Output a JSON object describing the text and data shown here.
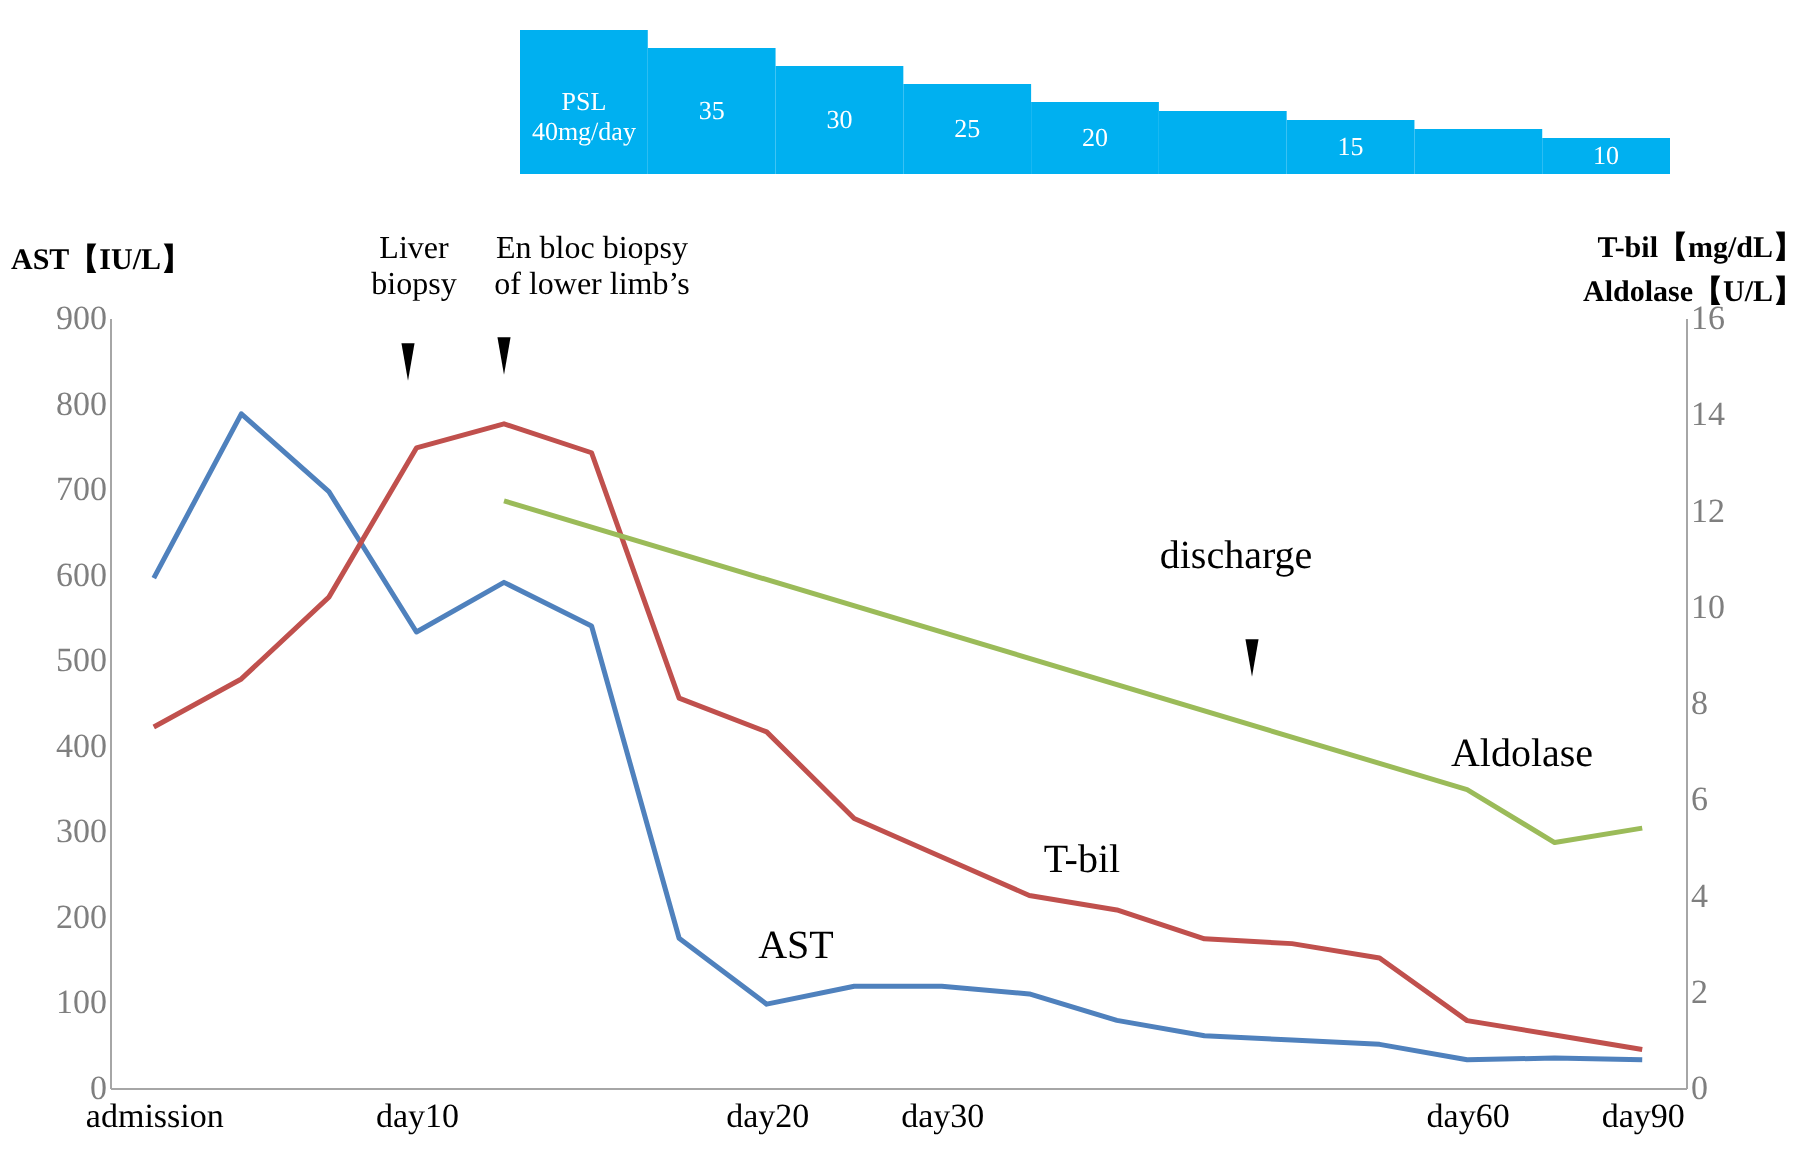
{
  "chart_data": [
    {
      "type": "bar",
      "categories": [
        null,
        null,
        null,
        null,
        null,
        null,
        null,
        null,
        null
      ],
      "values": [
        40,
        35,
        30,
        25,
        20,
        17.5,
        15,
        12.5,
        10
      ],
      "color": "#00b0f0",
      "value_labels": [
        "PSL 40mg/day",
        "35",
        "30",
        "25",
        "20",
        null,
        "15",
        null,
        "10"
      ]
    },
    {
      "type": "line",
      "ylabel": "AST【IU/L】",
      "y2label": "T-bil【mg/dL】\nAldolase【U/L】",
      "categories": [
        "admission",
        null,
        null,
        "day10",
        null,
        null,
        null,
        "day20",
        null,
        "day30",
        null,
        null,
        null,
        null,
        null,
        "day60",
        null,
        "day90"
      ],
      "ylim": [
        0,
        900
      ],
      "yticks": [
        0,
        100,
        200,
        300,
        400,
        500,
        600,
        700,
        800,
        900
      ],
      "y2lim": [
        0,
        16
      ],
      "y2ticks": [
        0,
        2,
        4,
        6,
        8,
        10,
        12,
        14,
        16
      ],
      "series": [
        {
          "name": "AST",
          "color": "#4f81bd",
          "values": [
            596,
            788,
            697,
            533,
            591,
            540,
            175,
            98,
            119,
            119,
            110,
            79,
            61,
            56,
            51,
            33,
            35,
            33
          ]
        },
        {
          "name": "T-bil",
          "color": "#c0504d",
          "axis": "y2",
          "values": [
            7.5,
            8.5,
            10.2,
            13.3,
            13.8,
            13.2,
            8.1,
            7.4,
            5.6,
            4.8,
            4.0,
            3.7,
            3.1,
            3.0,
            2.7,
            1.4,
            1.1,
            0.8
          ]
        },
        {
          "name": "Aldolase",
          "color": "#9bbb59",
          "axis": "y2",
          "values": [
            null,
            null,
            null,
            null,
            12.2,
            null,
            null,
            null,
            null,
            null,
            null,
            null,
            null,
            null,
            null,
            6.2,
            5.1,
            5.4
          ]
        }
      ],
      "annotations": [
        "Liver\nbiopsy",
        "En bloc biopsy\nof lower limb’s",
        "discharge"
      ],
      "grid": false
    }
  ]
}
